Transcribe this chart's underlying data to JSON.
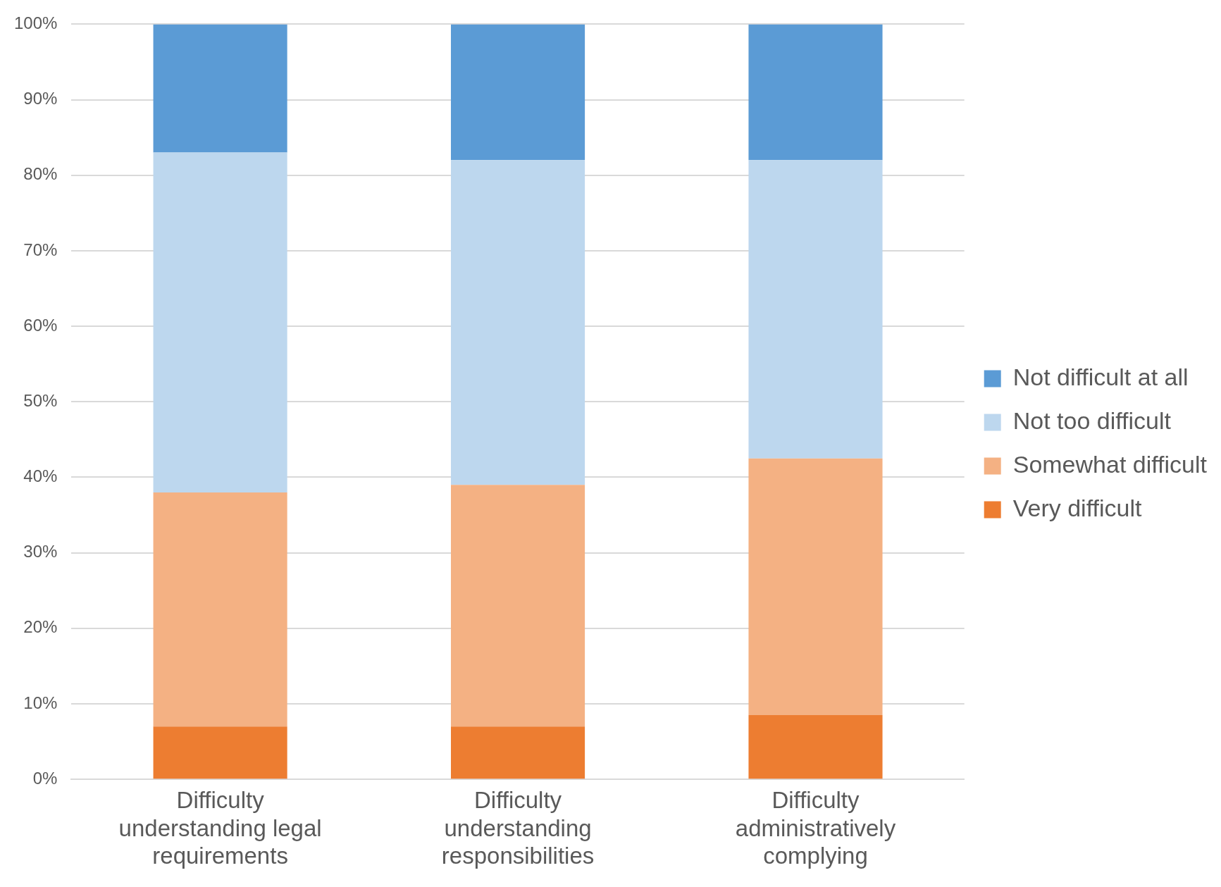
{
  "chart_data": {
    "type": "bar",
    "stacked": true,
    "categories": [
      "Difficulty understanding legal requirements",
      "Difficulty understanding responsibilities",
      "Difficulty administratively complying"
    ],
    "series": [
      {
        "name": "Very difficult",
        "color": "#ed7d31",
        "values": [
          7,
          7,
          8.5
        ]
      },
      {
        "name": "Somewhat difficult",
        "color": "#f4b183",
        "values": [
          31,
          32,
          34
        ]
      },
      {
        "name": "Not too difficult",
        "color": "#bdd7ee",
        "values": [
          45,
          43,
          39.5
        ]
      },
      {
        "name": "Not difficult at all",
        "color": "#5b9bd5",
        "values": [
          17,
          18,
          18
        ]
      }
    ],
    "ylim": [
      0,
      100
    ],
    "yticks": [
      {
        "value": 0,
        "label": "0%"
      },
      {
        "value": 10,
        "label": "10%"
      },
      {
        "value": 20,
        "label": "20%"
      },
      {
        "value": 30,
        "label": "30%"
      },
      {
        "value": 40,
        "label": "40%"
      },
      {
        "value": 50,
        "label": "50%"
      },
      {
        "value": 60,
        "label": "60%"
      },
      {
        "value": 70,
        "label": "70%"
      },
      {
        "value": 80,
        "label": "80%"
      },
      {
        "value": 90,
        "label": "90%"
      },
      {
        "value": 100,
        "label": "100%"
      }
    ],
    "grid": "y",
    "legend": "right"
  }
}
